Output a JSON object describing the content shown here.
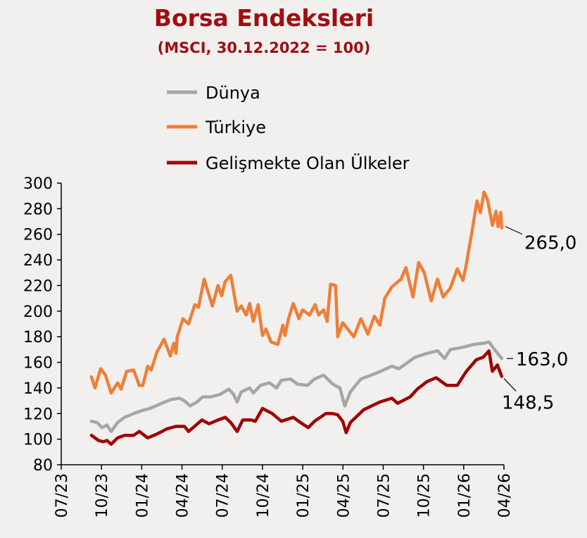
{
  "chart_data": {
    "type": "line",
    "title": "Borsa Endeksleri",
    "subtitle": "(MSCI, 30.12.2022 = 100)",
    "xlabel": "",
    "ylabel": "",
    "x_unit": "months since 07/23",
    "xlim": [
      0,
      33
    ],
    "ylim": [
      80,
      300
    ],
    "yticks": [
      80,
      100,
      120,
      140,
      160,
      180,
      200,
      220,
      240,
      260,
      280,
      300
    ],
    "xtick_labels": [
      "07/23",
      "10/23",
      "01/24",
      "04/24",
      "07/24",
      "10/24",
      "01/25",
      "04/25",
      "07/25",
      "10/25",
      "01/26",
      "04/26"
    ],
    "grid": false,
    "legend_position": "top-center",
    "series": [
      {
        "name": "Dünya",
        "color": "#a6a6a6",
        "end_label": "163,0",
        "points": [
          [
            2.25,
            114
          ],
          [
            2.67,
            113
          ],
          [
            3.04,
            109
          ],
          [
            3.41,
            111
          ],
          [
            3.72,
            106
          ],
          [
            4.2,
            113
          ],
          [
            4.72,
            117
          ],
          [
            5.4,
            120
          ],
          [
            5.93,
            122
          ],
          [
            6.61,
            124
          ],
          [
            7.5,
            128
          ],
          [
            8.18,
            131
          ],
          [
            8.81,
            132
          ],
          [
            9.18,
            130
          ],
          [
            9.6,
            126
          ],
          [
            10.12,
            129
          ],
          [
            10.54,
            133
          ],
          [
            11.17,
            133
          ],
          [
            11.85,
            135
          ],
          [
            12.48,
            139
          ],
          [
            12.85,
            135
          ],
          [
            13.11,
            129
          ],
          [
            13.42,
            137
          ],
          [
            14.05,
            140
          ],
          [
            14.32,
            136
          ],
          [
            14.84,
            142
          ],
          [
            15.52,
            144
          ],
          [
            16.05,
            140
          ],
          [
            16.41,
            146
          ],
          [
            17.09,
            147
          ],
          [
            17.62,
            143
          ],
          [
            18.35,
            142
          ],
          [
            18.88,
            147
          ],
          [
            19.56,
            150
          ],
          [
            20.24,
            143
          ],
          [
            20.77,
            140
          ],
          [
            21.13,
            126
          ],
          [
            21.55,
            137
          ],
          [
            22.34,
            147
          ],
          [
            23.6,
            152
          ],
          [
            24.65,
            157
          ],
          [
            25.17,
            155
          ],
          [
            26.38,
            164
          ],
          [
            27.27,
            167
          ],
          [
            28.05,
            169
          ],
          [
            28.58,
            163
          ],
          [
            29.0,
            170
          ],
          [
            30.05,
            172
          ],
          [
            30.73,
            174
          ],
          [
            31.52,
            175
          ],
          [
            31.88,
            176
          ],
          [
            32.3,
            170
          ],
          [
            32.83,
            163
          ]
        ]
      },
      {
        "name": "Türkiye",
        "color": "#ee7f38",
        "end_label": "265,0",
        "points": [
          [
            2.25,
            148.7
          ],
          [
            2.52,
            140
          ],
          [
            2.94,
            155
          ],
          [
            3.3,
            150
          ],
          [
            3.72,
            136
          ],
          [
            4.2,
            144
          ],
          [
            4.46,
            139
          ],
          [
            4.88,
            153
          ],
          [
            5.4,
            154
          ],
          [
            5.82,
            142
          ],
          [
            6.08,
            142
          ],
          [
            6.45,
            157
          ],
          [
            6.71,
            154
          ],
          [
            7.13,
            168
          ],
          [
            7.66,
            178
          ],
          [
            8.13,
            165
          ],
          [
            8.39,
            175
          ],
          [
            8.55,
            167
          ],
          [
            8.65,
            180
          ],
          [
            9.07,
            194
          ],
          [
            9.49,
            190
          ],
          [
            9.96,
            205
          ],
          [
            10.23,
            203
          ],
          [
            10.65,
            225
          ],
          [
            11.27,
            204
          ],
          [
            11.69,
            220
          ],
          [
            11.96,
            212
          ],
          [
            12.22,
            223
          ],
          [
            12.64,
            228
          ],
          [
            13.11,
            200
          ],
          [
            13.42,
            204
          ],
          [
            13.79,
            197
          ],
          [
            14.05,
            206
          ],
          [
            14.32,
            192
          ],
          [
            14.68,
            205
          ],
          [
            15.0,
            181
          ],
          [
            15.26,
            186
          ],
          [
            15.63,
            176
          ],
          [
            16.15,
            174
          ],
          [
            16.52,
            189
          ],
          [
            16.68,
            181
          ],
          [
            16.94,
            194
          ],
          [
            17.3,
            206
          ],
          [
            17.72,
            194
          ],
          [
            17.99,
            201
          ],
          [
            18.51,
            197
          ],
          [
            18.93,
            205
          ],
          [
            19.19,
            197
          ],
          [
            19.56,
            201
          ],
          [
            19.82,
            192
          ],
          [
            20.08,
            221
          ],
          [
            20.45,
            220
          ],
          [
            20.61,
            180
          ],
          [
            20.98,
            191
          ],
          [
            21.81,
            180
          ],
          [
            22.34,
            194
          ],
          [
            22.86,
            182
          ],
          [
            23.34,
            196
          ],
          [
            23.75,
            189
          ],
          [
            24.12,
            210
          ],
          [
            24.65,
            219
          ],
          [
            25.33,
            225
          ],
          [
            25.69,
            234
          ],
          [
            26.22,
            211
          ],
          [
            26.64,
            238
          ],
          [
            27.06,
            230
          ],
          [
            27.58,
            208
          ],
          [
            28.05,
            225
          ],
          [
            28.47,
            211
          ],
          [
            29.0,
            218
          ],
          [
            29.52,
            233
          ],
          [
            29.94,
            224
          ],
          [
            30.15,
            234
          ],
          [
            30.68,
            266
          ],
          [
            30.99,
            286
          ],
          [
            31.25,
            277
          ],
          [
            31.52,
            293
          ],
          [
            31.78,
            287
          ],
          [
            32.14,
            267
          ],
          [
            32.41,
            278
          ],
          [
            32.56,
            266
          ],
          [
            32.77,
            277
          ],
          [
            32.83,
            265
          ]
        ]
      },
      {
        "name": "Gelişmekte Olan Ülkeler",
        "color": "#a00000",
        "end_label": "148,5",
        "points": [
          [
            2.25,
            103
          ],
          [
            2.78,
            99
          ],
          [
            3.15,
            98
          ],
          [
            3.41,
            99
          ],
          [
            3.72,
            96
          ],
          [
            4.2,
            101
          ],
          [
            4.72,
            103
          ],
          [
            5.4,
            103
          ],
          [
            5.82,
            106
          ],
          [
            6.45,
            101
          ],
          [
            7.13,
            104
          ],
          [
            7.87,
            108
          ],
          [
            8.55,
            110
          ],
          [
            9.18,
            110
          ],
          [
            9.49,
            106
          ],
          [
            10.49,
            115
          ],
          [
            11.01,
            112
          ],
          [
            11.69,
            115
          ],
          [
            12.22,
            117
          ],
          [
            12.64,
            113
          ],
          [
            13.11,
            106
          ],
          [
            13.53,
            115
          ],
          [
            14.16,
            115
          ],
          [
            14.47,
            114
          ],
          [
            15.0,
            124
          ],
          [
            15.73,
            120
          ],
          [
            16.41,
            114
          ],
          [
            17.3,
            117
          ],
          [
            17.83,
            113
          ],
          [
            18.41,
            109
          ],
          [
            18.88,
            114
          ],
          [
            19.72,
            120
          ],
          [
            20.24,
            120
          ],
          [
            20.61,
            119
          ],
          [
            20.98,
            114
          ],
          [
            21.24,
            105
          ],
          [
            21.55,
            113
          ],
          [
            22.55,
            123
          ],
          [
            23.75,
            129
          ],
          [
            24.65,
            132
          ],
          [
            25.07,
            128
          ],
          [
            26.01,
            133
          ],
          [
            26.53,
            139
          ],
          [
            27.27,
            145
          ],
          [
            27.95,
            148
          ],
          [
            28.74,
            142
          ],
          [
            29.52,
            142
          ],
          [
            30.2,
            153
          ],
          [
            30.94,
            162
          ],
          [
            31.46,
            164
          ],
          [
            31.88,
            169
          ],
          [
            32.14,
            153
          ],
          [
            32.51,
            158
          ],
          [
            32.83,
            149
          ]
        ]
      }
    ]
  }
}
